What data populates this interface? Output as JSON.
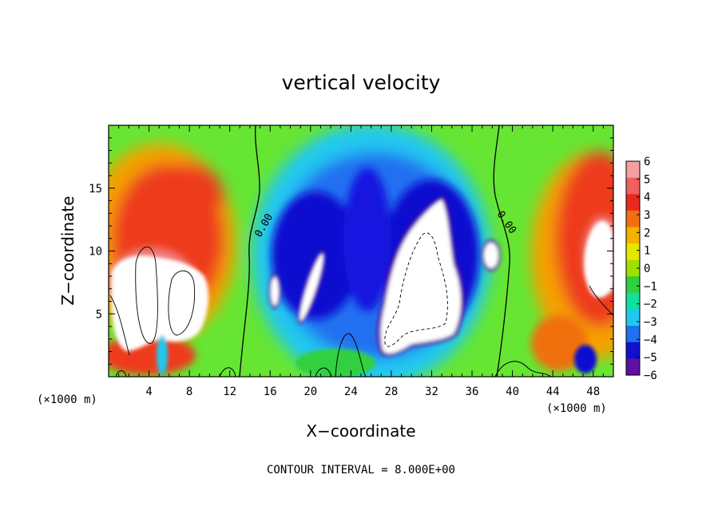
{
  "chart_data": {
    "type": "heatmap",
    "title": "vertical velocity",
    "xlabel": "X−coordinate",
    "ylabel": "Z−coordinate",
    "x_unit_left": "(×1000 m)",
    "x_unit_right": "(×1000 m)",
    "xlim": [
      0,
      50
    ],
    "ylim": [
      0,
      20
    ],
    "x_ticks": [
      4,
      8,
      12,
      16,
      20,
      24,
      28,
      32,
      36,
      40,
      44,
      48
    ],
    "y_ticks": [
      5,
      10,
      15
    ],
    "colorbar": {
      "range": [
        -6,
        6
      ],
      "ticks": [
        "6",
        "5",
        "4",
        "3",
        "2",
        "1",
        "0",
        "−1",
        "−2",
        "−3",
        "−4",
        "−5",
        "−6"
      ],
      "colors": [
        "#f4a0a0",
        "#f06060",
        "#e82a1e",
        "#f07010",
        "#f5b000",
        "#e6e600",
        "#a0e000",
        "#30d040",
        "#10e0a0",
        "#20c8f0",
        "#2070f0",
        "#1010d0",
        "#6010a0"
      ]
    },
    "contour_labels": [
      "0.00",
      "0.00"
    ],
    "footer": "CONTOUR INTERVAL = 8.000E+00"
  }
}
